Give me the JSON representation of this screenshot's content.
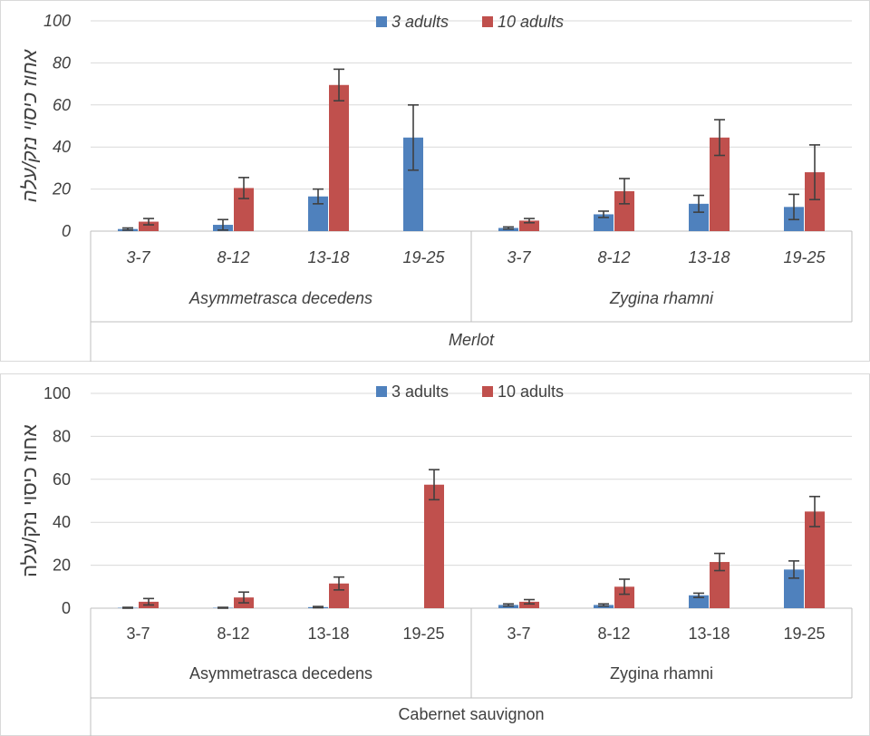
{
  "charts": [
    {
      "type": "bar",
      "title": "",
      "ylabel": "אחוז כיסוי נזק/עלה",
      "xlabel": "",
      "ylim": [
        0,
        100
      ],
      "yticks": [
        0,
        20,
        40,
        60,
        80,
        100
      ],
      "italic": true,
      "grid": true,
      "legend_position": "top-center",
      "outer_group": "Merlot",
      "groups": [
        {
          "name": "Asymmetrasca decedens",
          "categories": [
            "3-7",
            "8-12",
            "13-18",
            "19-25"
          ]
        },
        {
          "name": "Zygina rhamni",
          "categories": [
            "3-7",
            "8-12",
            "13-18",
            "19-25"
          ]
        }
      ],
      "categories": [
        "3-7",
        "8-12",
        "13-18",
        "19-25",
        "3-7",
        "8-12",
        "13-18",
        "19-25"
      ],
      "series": [
        {
          "name": "3 adults",
          "color": "#4f81bd",
          "values": [
            1,
            3,
            16.5,
            44.5,
            1.5,
            8,
            13,
            11.5
          ],
          "errors": [
            0.5,
            2.5,
            3.5,
            15.5,
            0.5,
            1.5,
            4,
            6
          ]
        },
        {
          "name": "10 adults",
          "color": "#c0504d",
          "values": [
            4.5,
            20.5,
            69.5,
            0,
            5,
            19,
            44.5,
            28
          ],
          "errors": [
            1.5,
            5,
            7.5,
            0,
            1,
            6,
            8.5,
            13
          ]
        }
      ]
    },
    {
      "type": "bar",
      "title": "",
      "ylabel": "אחוז כיסוי נזק/עלה",
      "xlabel": "",
      "ylim": [
        0,
        100
      ],
      "yticks": [
        0,
        20,
        40,
        60,
        80,
        100
      ],
      "italic": false,
      "grid": true,
      "legend_position": "top-center",
      "outer_group": "Cabernet sauvignon",
      "groups": [
        {
          "name": "Asymmetrasca decedens",
          "categories": [
            "3-7",
            "8-12",
            "13-18",
            "19-25"
          ]
        },
        {
          "name": "Zygina rhamni",
          "categories": [
            "3-7",
            "8-12",
            "13-18",
            "19-25"
          ]
        }
      ],
      "categories": [
        "3-7",
        "8-12",
        "13-18",
        "19-25",
        "3-7",
        "8-12",
        "13-18",
        "19-25"
      ],
      "series": [
        {
          "name": "3 adults",
          "color": "#4f81bd",
          "values": [
            0.2,
            0.2,
            0.5,
            0,
            1.5,
            1.5,
            6,
            18
          ],
          "errors": [
            0.2,
            0.2,
            0.3,
            0,
            0.5,
            0.5,
            1,
            4
          ]
        },
        {
          "name": "10 adults",
          "color": "#c0504d",
          "values": [
            3,
            5,
            11.5,
            57.5,
            3,
            10,
            21.5,
            45
          ],
          "errors": [
            1.5,
            2.5,
            3,
            7,
            1,
            3.5,
            4,
            7
          ]
        }
      ]
    }
  ]
}
